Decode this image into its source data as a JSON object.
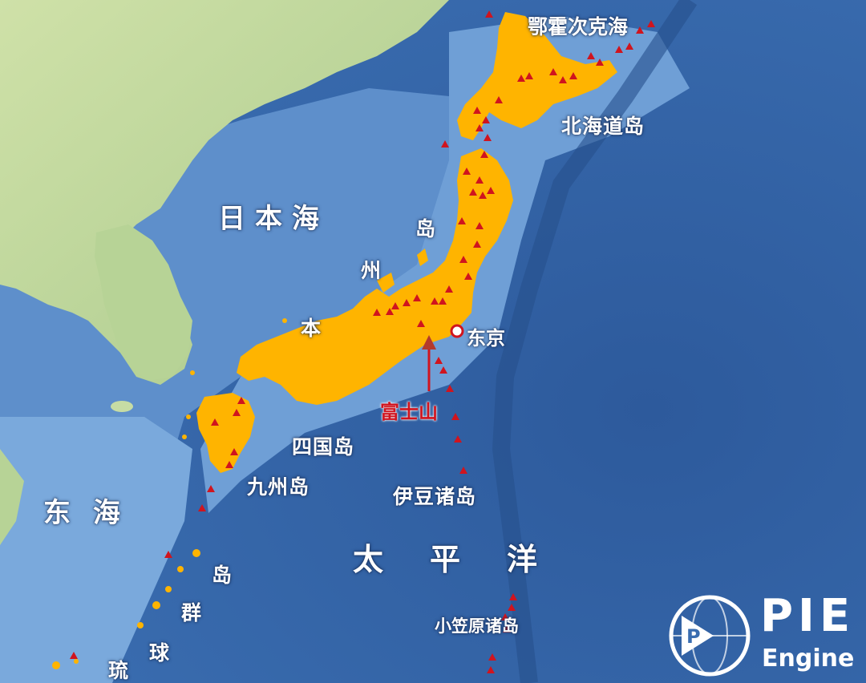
{
  "labels": {
    "sea_of_japan": "日本海",
    "east_china_sea": "东海",
    "pacific": "太平洋",
    "okhotsk": "鄂霍次克海",
    "hokkaido": "北海道岛",
    "honshu": [
      "岛",
      "州",
      "本"
    ],
    "tokyo": "东京",
    "fuji": "富士山",
    "shikoku": "四国岛",
    "kyushu": "九州岛",
    "izu": "伊豆诸岛",
    "ogasawara": "小笠原诸岛",
    "ryukyu": [
      "岛",
      "群",
      "球",
      "琉"
    ]
  },
  "logo": {
    "text": "PIE",
    "subtext": "Engine"
  },
  "colors": {
    "ocean_deep": "#2f5c9e",
    "ocean_shelf": "#6f9fd6",
    "land_mainland": "#b9d49a",
    "japan": "#ffb400",
    "volcano": "#d0141e",
    "fuji_marker": "#b43a2c"
  },
  "icons": {
    "volcano": "red-triangle-icon",
    "city": "city-dot-icon",
    "peak": "mountain-marker-icon",
    "logo": "globe-logo-icon"
  }
}
